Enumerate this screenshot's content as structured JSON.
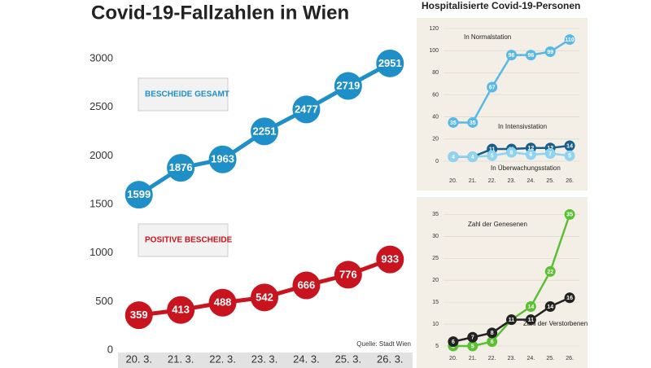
{
  "chart_data": [
    {
      "type": "line",
      "title": "Covid-19-Fallzahlen in Wien",
      "source": "Quelle: Stadt Wien",
      "categories": [
        "20. 3.",
        "21. 3.",
        "22. 3.",
        "23. 3.",
        "24. 3.",
        "25. 3.",
        "26. 3."
      ],
      "series": [
        {
          "name": "BESCHEIDE GESAMT",
          "color": "#1f8fc8",
          "values": [
            1599,
            1876,
            1963,
            2251,
            2477,
            2719,
            2951
          ]
        },
        {
          "name": "POSITIVE BESCHEIDE",
          "color": "#c8141e",
          "values": [
            359,
            413,
            488,
            542,
            666,
            776,
            933
          ]
        }
      ],
      "ylim": [
        0,
        3000
      ],
      "yticks": [
        0,
        500,
        1000,
        1500,
        2000,
        2500,
        3000
      ],
      "grid": false
    },
    {
      "type": "line",
      "title": "Hospitalisierte Covid-19-Personen",
      "categories": [
        "20.",
        "21.",
        "22.",
        "23.",
        "24.",
        "25.",
        "26."
      ],
      "series": [
        {
          "name": "In Normalstation",
          "color": "#5ab8e6",
          "values": [
            35,
            35,
            67,
            96,
            96,
            99,
            110
          ]
        },
        {
          "name": "In Intensivstation",
          "color": "#1a5f8c",
          "values": [
            4,
            4,
            11,
            11,
            12,
            12,
            14
          ]
        },
        {
          "name": "In Überwachungsstation",
          "color": "#8fd3f2",
          "values": [
            4,
            4,
            5,
            8,
            6,
            7,
            5
          ]
        }
      ],
      "ylim": [
        0,
        120
      ],
      "yticks": [
        0,
        20,
        40,
        60,
        80,
        100,
        120
      ],
      "grid": true
    },
    {
      "type": "line",
      "categories": [
        "20.",
        "21.",
        "22.",
        "23.",
        "24.",
        "25.",
        "26."
      ],
      "series": [
        {
          "name": "Zahl der Genesenen",
          "color": "#5cc034",
          "values": [
            5,
            5,
            6,
            11,
            14,
            22,
            35
          ]
        },
        {
          "name": "Zahl der Verstorbenen",
          "color": "#222222",
          "values": [
            6,
            7,
            8,
            11,
            11,
            14,
            16
          ]
        }
      ],
      "ylim": [
        5,
        36
      ],
      "yticks": [
        5,
        10,
        15,
        20,
        25,
        30,
        35
      ],
      "grid": true
    }
  ]
}
